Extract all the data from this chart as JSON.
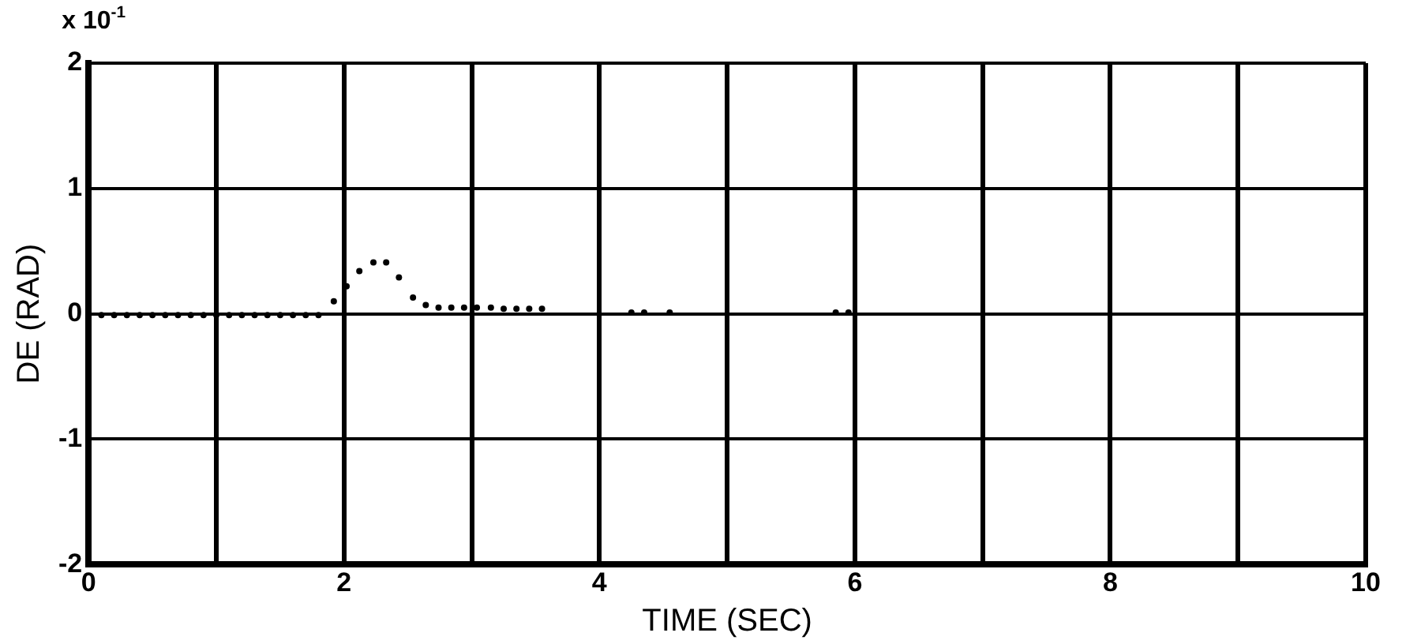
{
  "chart_data": {
    "type": "scatter",
    "xlabel": "TIME (SEC)",
    "ylabel": "DE (RAD)",
    "annotations": [
      "x 10$^{-1}$"
    ],
    "series": [
      {
        "color": "#000000",
        "x": [
          0.1,
          0.2,
          0.3,
          0.4,
          0.5,
          0.6,
          0.7,
          0.8,
          0.9,
          1.0,
          1.1,
          1.2,
          1.3,
          1.4,
          1.5,
          1.6,
          1.7,
          1.8,
          1.92,
          2.02,
          2.12,
          2.23,
          2.33,
          2.43,
          2.54,
          2.64,
          2.74,
          2.84,
          2.94,
          3.04,
          3.15,
          3.25,
          3.35,
          3.45,
          3.55,
          4.25,
          4.35,
          4.55,
          5.85,
          5.95
        ],
        "values": [
          -0.01,
          -0.01,
          -0.01,
          -0.01,
          -0.01,
          -0.01,
          -0.01,
          -0.01,
          -0.01,
          -0.01,
          -0.01,
          -0.01,
          -0.01,
          -0.01,
          -0.01,
          -0.01,
          -0.01,
          -0.01,
          0.1,
          0.22,
          0.34,
          0.41,
          0.41,
          0.29,
          0.13,
          0.07,
          0.05,
          0.05,
          0.05,
          0.05,
          0.05,
          0.04,
          0.04,
          0.04,
          0.04,
          0.01,
          0.01,
          0.01,
          0.01,
          0.01
        ]
      }
    ],
    "xlim": [
      0,
      10
    ],
    "xticks": [
      0,
      {
        "value": 1,
        "label": null
      },
      2,
      {
        "value": 3,
        "label": null
      },
      4,
      {
        "value": 5,
        "label": null
      },
      6,
      {
        "value": 7,
        "label": null
      },
      8,
      {
        "value": 9,
        "label": null
      },
      10
    ],
    "ylim": [
      -2,
      2
    ],
    "yticks": [
      -2,
      -1,
      0,
      1,
      2
    ],
    "grid": true,
    "marker": "circle"
  }
}
